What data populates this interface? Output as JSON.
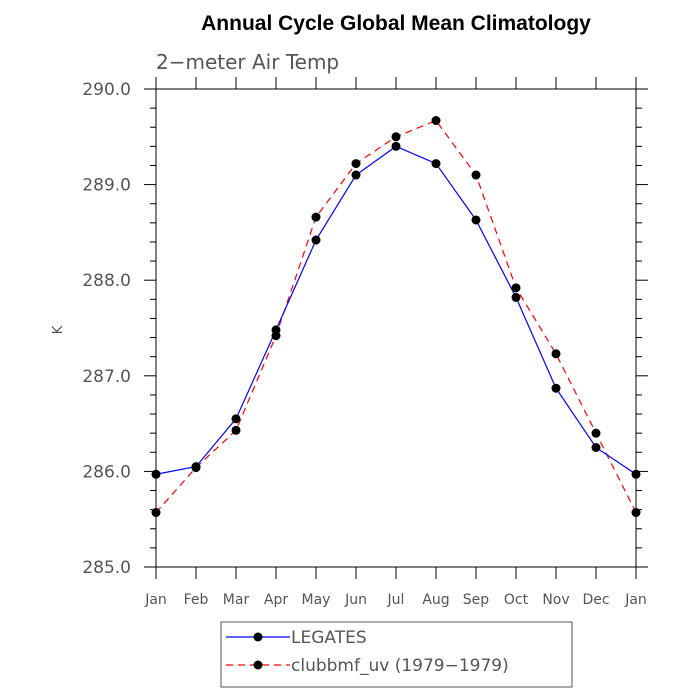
{
  "chart_data": {
    "type": "line",
    "title": "Annual Cycle Global Mean Climatology",
    "subtitle": "2−meter Air Temp",
    "xlabel": "",
    "ylabel": "K",
    "categories": [
      "Jan",
      "Feb",
      "Mar",
      "Apr",
      "May",
      "Jun",
      "Jul",
      "Aug",
      "Sep",
      "Oct",
      "Nov",
      "Dec",
      "Jan"
    ],
    "ylim": [
      285.0,
      290.0
    ],
    "yticks": [
      "285.0",
      "286.0",
      "287.0",
      "288.0",
      "289.0",
      "290.0"
    ],
    "grid": false,
    "legend_position": "bottom-center",
    "series": [
      {
        "name": "LEGATES",
        "color": "#0000ff",
        "dash": "solid",
        "marker": "filled-circle",
        "values": [
          285.97,
          286.05,
          286.55,
          287.48,
          288.42,
          289.1,
          289.4,
          289.22,
          288.63,
          287.82,
          286.87,
          286.25,
          285.97
        ]
      },
      {
        "name": "clubbmf_uv (1979−1979)",
        "color": "#ff0000",
        "dash": "dashed",
        "marker": "filled-circle",
        "values": [
          285.57,
          286.04,
          286.43,
          287.42,
          288.66,
          289.22,
          289.5,
          289.67,
          289.1,
          287.92,
          287.23,
          286.4,
          285.57
        ]
      }
    ]
  }
}
